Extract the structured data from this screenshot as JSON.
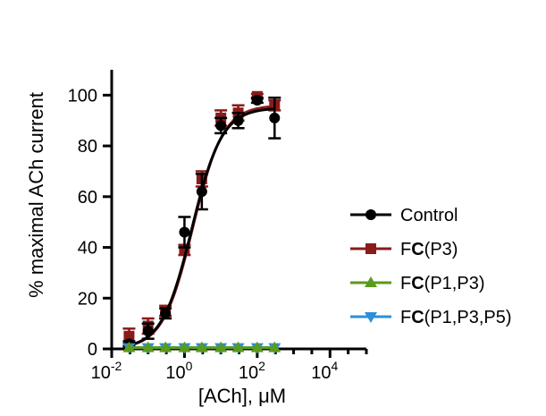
{
  "chart_data": {
    "type": "scatter",
    "title": "",
    "xlabel": "[ACh], μM",
    "ylabel": "% maximal ACh current",
    "xscale": "log",
    "xlim": [
      0.01,
      100000
    ],
    "ylim": [
      0,
      110
    ],
    "x_ticks": [
      {
        "value": 0.01,
        "base": "10",
        "exp": "-2"
      },
      {
        "value": 1,
        "base": "10",
        "exp": "0"
      },
      {
        "value": 100,
        "base": "10",
        "exp": "2"
      },
      {
        "value": 10000,
        "base": "10",
        "exp": "4"
      }
    ],
    "y_ticks": [
      {
        "value": 0,
        "label": "0"
      },
      {
        "value": 20,
        "label": "20"
      },
      {
        "value": 40,
        "label": "40"
      },
      {
        "value": 60,
        "label": "60"
      },
      {
        "value": 80,
        "label": "80"
      },
      {
        "value": 100,
        "label": "100"
      }
    ],
    "grid": false,
    "legend": "right",
    "series": [
      {
        "name_prefix": "F",
        "name_bold": "C",
        "name_suffix": "(P3)",
        "name": "FC(P3)",
        "color": "#8b1a1a",
        "marker": "square",
        "points": [
          {
            "x": 0.03,
            "y": 5,
            "err": 3
          },
          {
            "x": 0.1,
            "y": 9,
            "err": 3
          },
          {
            "x": 0.3,
            "y": 15,
            "err": 2
          },
          {
            "x": 1,
            "y": 39,
            "err": 2
          },
          {
            "x": 3,
            "y": 67,
            "err": 3
          },
          {
            "x": 10,
            "y": 91,
            "err": 3
          },
          {
            "x": 30,
            "y": 93,
            "err": 3
          },
          {
            "x": 100,
            "y": 99.5,
            "err": 1
          },
          {
            "x": 300,
            "y": 96,
            "err": 2
          }
        ],
        "fit": {
          "bottom": 0,
          "top": 96,
          "ec50": 1.7,
          "hill": 1.05
        }
      },
      {
        "name_prefix": "Control",
        "name_bold": "",
        "name_suffix": "",
        "name": "Control",
        "color": "#000000",
        "marker": "circle",
        "points": [
          {
            "x": 0.03,
            "y": 2,
            "err": 1
          },
          {
            "x": 0.1,
            "y": 7,
            "err": 3
          },
          {
            "x": 0.3,
            "y": 14,
            "err": 2
          },
          {
            "x": 1,
            "y": 46,
            "err": 6
          },
          {
            "x": 3,
            "y": 62,
            "err": 7
          },
          {
            "x": 10,
            "y": 88,
            "err": 3
          },
          {
            "x": 30,
            "y": 90,
            "err": 3
          },
          {
            "x": 100,
            "y": 98,
            "err": 1
          },
          {
            "x": 300,
            "y": 91,
            "err": 8
          }
        ],
        "fit": {
          "bottom": 0,
          "top": 95,
          "ec50": 1.6,
          "hill": 1.05
        }
      },
      {
        "name_prefix": "F",
        "name_bold": "C",
        "name_suffix": "(P1,P3)",
        "name": "FC(P1,P3)",
        "color": "#5a9a1e",
        "marker": "triangle-up",
        "points": [
          {
            "x": 0.03,
            "y": 0.5
          },
          {
            "x": 0.1,
            "y": 0.5
          },
          {
            "x": 0.3,
            "y": 0.5
          },
          {
            "x": 1,
            "y": 0.5
          },
          {
            "x": 3,
            "y": 0.5
          },
          {
            "x": 10,
            "y": 0.5
          },
          {
            "x": 30,
            "y": 0.5
          },
          {
            "x": 100,
            "y": 0.5
          },
          {
            "x": 300,
            "y": 0.5
          }
        ],
        "fit": {
          "flat": 0.5
        }
      },
      {
        "name_prefix": "F",
        "name_bold": "C",
        "name_suffix": "(P1,P3,P5)",
        "name": "FC(P1,P3,P5)",
        "color": "#2e8fd8",
        "marker": "triangle-down",
        "points": [
          {
            "x": 0.03,
            "y": 0.5
          },
          {
            "x": 0.1,
            "y": 0.5
          },
          {
            "x": 0.3,
            "y": 0.5
          },
          {
            "x": 1,
            "y": 0.5
          },
          {
            "x": 3,
            "y": 0.5
          },
          {
            "x": 10,
            "y": 0.5
          },
          {
            "x": 30,
            "y": 0.5
          },
          {
            "x": 100,
            "y": 0.5
          },
          {
            "x": 300,
            "y": 0.5
          }
        ],
        "fit": {
          "flat": 0.5
        }
      }
    ],
    "legend_order": [
      "Control",
      "FC(P3)",
      "FC(P1,P3)",
      "FC(P1,P3,P5)"
    ]
  }
}
